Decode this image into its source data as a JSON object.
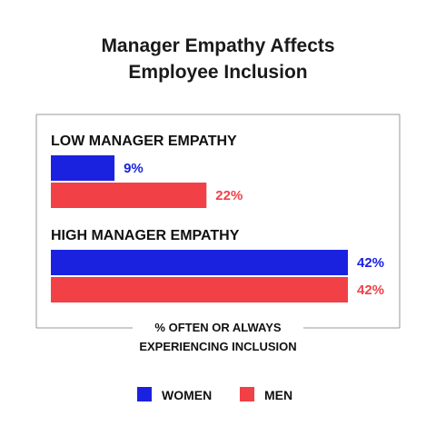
{
  "title_lines": [
    "Manager Empathy Affects",
    "Employee Inclusion"
  ],
  "colors": {
    "women": "#1a22e0",
    "men": "#f24047",
    "frame": "#999999"
  },
  "chart_data": {
    "type": "bar",
    "orientation": "horizontal",
    "title": "Manager Empathy Affects Employee Inclusion",
    "categories": [
      "LOW MANAGER EMPATHY",
      "HIGH MANAGER EMPATHY"
    ],
    "series": [
      {
        "name": "WOMEN",
        "values": [
          9,
          42
        ],
        "labels": [
          "9%",
          "42%"
        ],
        "color": "#1a22e0"
      },
      {
        "name": "MEN",
        "values": [
          22,
          42
        ],
        "labels": [
          "22%",
          "42%"
        ],
        "color": "#f24047"
      }
    ],
    "xlabel_lines": [
      "% OFTEN OR ALWAYS",
      "EXPERIENCING INCLUSION"
    ],
    "xlim": [
      0,
      42
    ],
    "grid": false,
    "legend_position": "bottom-center"
  },
  "legend": [
    {
      "label": "WOMEN",
      "color": "#1a22e0"
    },
    {
      "label": "MEN",
      "color": "#f24047"
    }
  ]
}
